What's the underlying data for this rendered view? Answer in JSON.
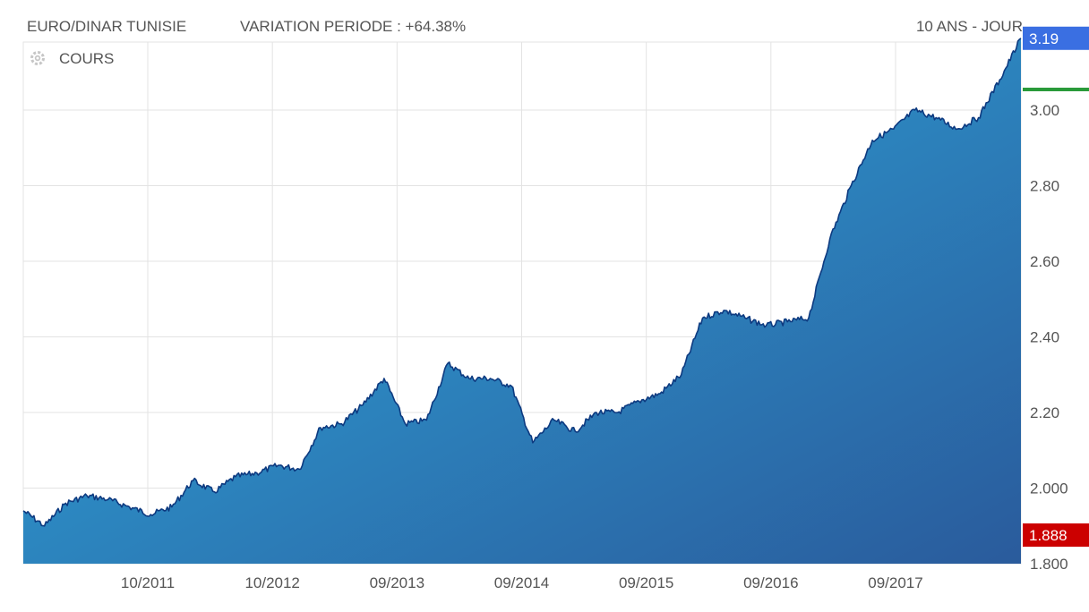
{
  "header": {
    "pair": "EURO/DINAR TUNISIE",
    "variation": "VARIATION PERIODE : +64.38%",
    "period": "10 ANS - JOUR"
  },
  "legend": {
    "label": "COURS",
    "icon": "gear-icon"
  },
  "colors": {
    "line": "#0d3a80",
    "fill_top": "#2eaee0",
    "fill_bottom": "#2a5b9c",
    "grid": "#e3e3e3",
    "last_badge": "#3a6fe2",
    "min_badge": "#cc0000",
    "max_marker": "#2a9a3a"
  },
  "chart_data": {
    "type": "area",
    "title": "",
    "xlabel": "",
    "ylabel": "",
    "x_tick_labels": [
      "10/2011",
      "10/2012",
      "09/2013",
      "09/2014",
      "09/2015",
      "09/2016",
      "09/2017"
    ],
    "y_tick_labels": [
      "1.800",
      "2.000",
      "2.20",
      "2.40",
      "2.60",
      "2.80",
      "3.00"
    ],
    "y_ticks": [
      1.8,
      2.0,
      2.2,
      2.4,
      2.6,
      2.8,
      3.0
    ],
    "ylim": [
      1.8,
      3.18
    ],
    "xlim": [
      "2010-10",
      "2018-08"
    ],
    "grid": true,
    "last_value": 3.19,
    "last_value_label": "3.19",
    "min_value": 1.888,
    "min_value_label": "1.888",
    "series": [
      {
        "x": [
          "2010-10",
          "2010-12",
          "2011-02",
          "2011-04",
          "2011-06",
          "2011-08",
          "2011-10",
          "2011-12",
          "2012-02",
          "2012-04",
          "2012-06",
          "2012-08",
          "2012-10",
          "2012-12",
          "2013-02",
          "2013-04",
          "2013-06",
          "2013-08",
          "2013-10",
          "2013-12",
          "2014-02",
          "2014-04",
          "2014-06",
          "2014-08",
          "2014-10",
          "2014-12",
          "2015-02",
          "2015-04",
          "2015-06",
          "2015-08",
          "2015-10",
          "2015-12",
          "2016-02",
          "2016-04",
          "2016-06",
          "2016-08",
          "2016-10",
          "2016-12",
          "2017-02",
          "2017-04",
          "2017-06",
          "2017-08",
          "2017-10",
          "2017-12",
          "2018-02",
          "2018-04",
          "2018-06",
          "2018-08"
        ],
        "y": [
          1.94,
          1.9,
          1.96,
          1.98,
          1.97,
          1.95,
          1.93,
          1.95,
          2.02,
          1.99,
          2.03,
          2.04,
          2.06,
          2.05,
          2.16,
          2.17,
          2.22,
          2.29,
          2.17,
          2.18,
          2.33,
          2.29,
          2.29,
          2.27,
          2.12,
          2.18,
          2.15,
          2.2,
          2.2,
          2.23,
          2.25,
          2.3,
          2.45,
          2.47,
          2.45,
          2.43,
          2.44,
          2.45,
          2.66,
          2.8,
          2.92,
          2.95,
          3.0,
          2.98,
          2.95,
          2.98,
          3.08,
          3.19
        ]
      }
    ]
  }
}
